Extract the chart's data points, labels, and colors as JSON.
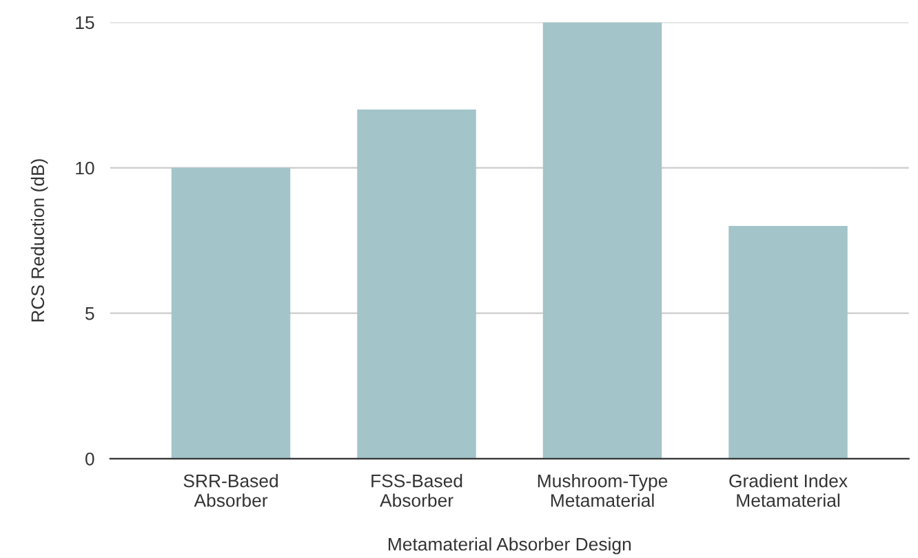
{
  "chart_data": {
    "type": "bar",
    "xlabel": "Metamaterial Absorber Design",
    "ylabel": "RCS Reduction (dB)",
    "categories": [
      "SRR-Based\nAbsorber",
      "FSS-Based\nAbsorber",
      "Mushroom-Type\nMetamaterial",
      "Gradient Index\nMetamaterial"
    ],
    "values": [
      10,
      12,
      15,
      8
    ],
    "color": "#a3c4c9",
    "ylim": [
      0,
      15
    ],
    "yticks": [
      0,
      5,
      10,
      15
    ],
    "grid": "y",
    "legend": false
  }
}
